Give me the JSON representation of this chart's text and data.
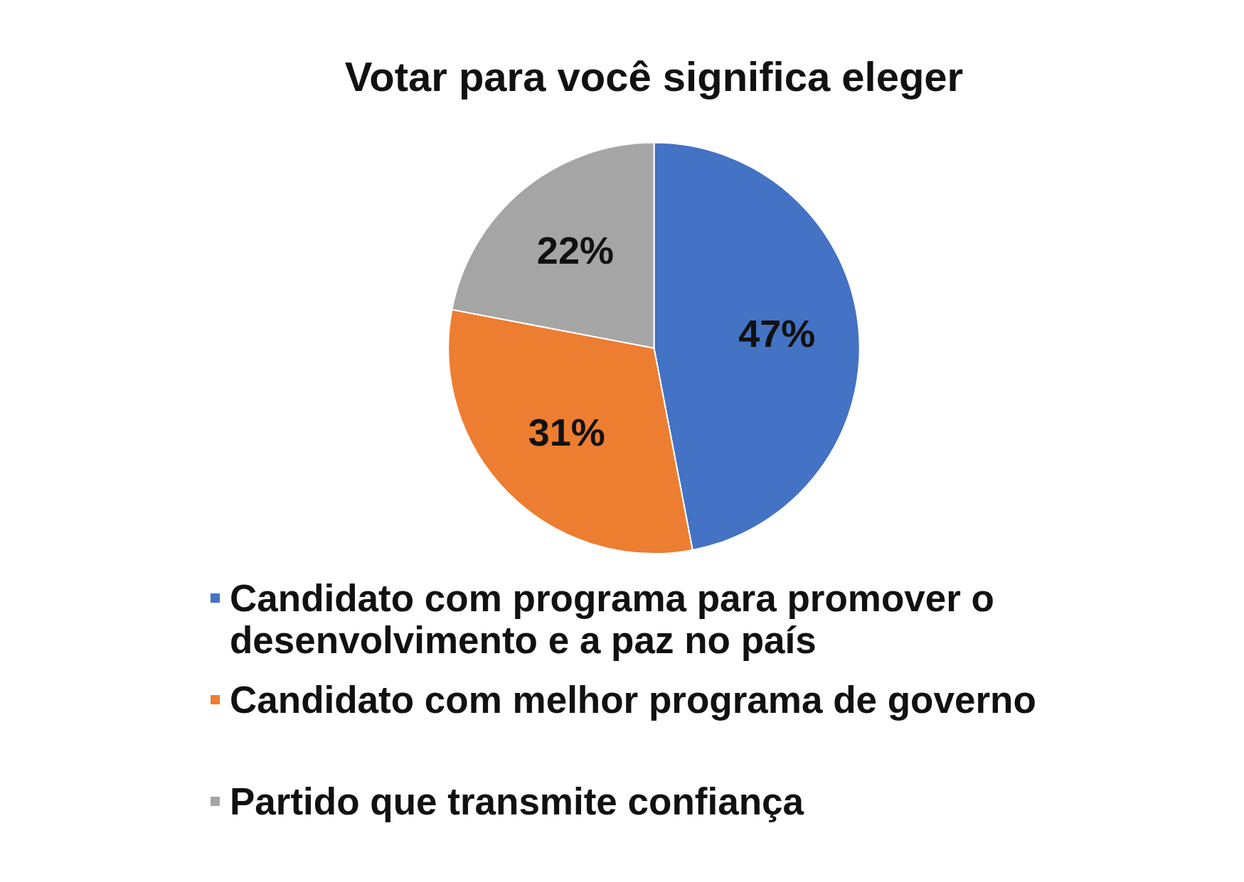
{
  "chart_data": {
    "type": "pie",
    "title": "Votar para você significa eleger",
    "categories": [
      "Candidato com programa para promover o desenvolvimento e a paz no país",
      "Candidato com melhor programa de governo",
      "Partido que transmite confiança"
    ],
    "values": [
      47,
      31,
      22
    ],
    "colors": [
      "#4472c4",
      "#ed7d31",
      "#a5a5a5"
    ],
    "value_labels": [
      "47%",
      "31%",
      "22%"
    ],
    "legend": "bottom"
  }
}
